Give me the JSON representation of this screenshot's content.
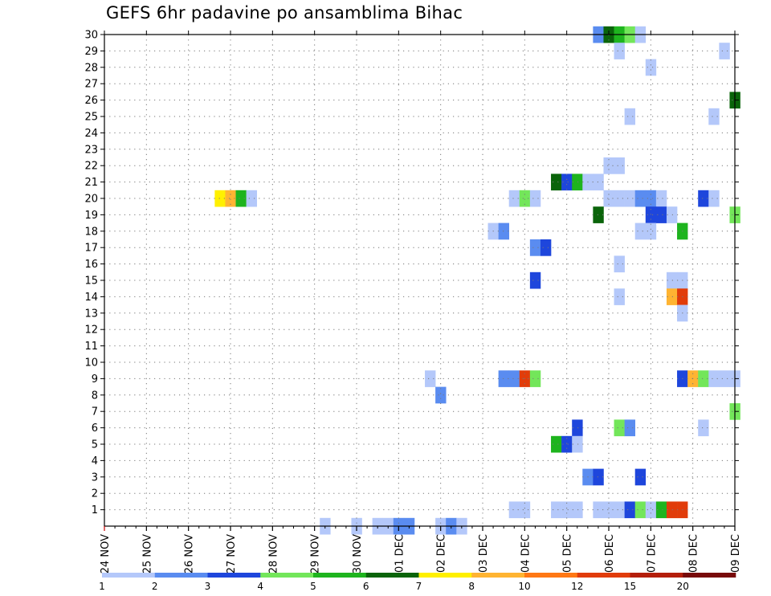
{
  "title": "GEFS 6hr padavine po ansamblima Bihac",
  "chart_data": {
    "type": "heatmap",
    "title": "GEFS 6hr padavine po ansamblima Bihac",
    "x_tick_labels": [
      "24 NOV",
      "25 NOV",
      "26 NOV",
      "27 NOV",
      "28 NOV",
      "29 NOV",
      "30 NOV",
      "01 DEC",
      "02 DEC",
      "03 DEC",
      "04 DEC",
      "05 DEC",
      "06 DEC",
      "07 DEC",
      "08 DEC",
      "09 DEC"
    ],
    "y_tick_labels": [
      "1",
      "2",
      "3",
      "4",
      "5",
      "6",
      "7",
      "8",
      "9",
      "10",
      "11",
      "12",
      "13",
      "14",
      "15",
      "16",
      "17",
      "18",
      "19",
      "20",
      "21",
      "22",
      "23",
      "24",
      "25",
      "26",
      "27",
      "28",
      "29",
      "30"
    ],
    "x_steps_per_day": 4,
    "colorbar": {
      "colors": [
        "#b4c8fa",
        "#5a8cf0",
        "#1e46dc",
        "#73e65a",
        "#1eb41e",
        "#0a640a",
        "#fff000",
        "#ffb432",
        "#ff7814",
        "#e13c0a",
        "#b41e0a",
        "#780a0a"
      ],
      "labels": [
        "1",
        "2",
        "3",
        "4",
        "5",
        "6",
        "7",
        "8",
        "10",
        "12",
        "15",
        "20"
      ]
    },
    "grid": true,
    "cells": [
      {
        "m": 30,
        "s": [
          [
            47,
            1
          ],
          [
            48,
            5
          ],
          [
            49,
            4
          ],
          [
            50,
            3
          ],
          [
            51,
            0
          ]
        ]
      },
      {
        "m": 29,
        "s": [
          [
            49,
            0
          ],
          [
            59,
            0
          ]
        ]
      },
      {
        "m": 28,
        "s": [
          [
            52,
            0
          ]
        ]
      },
      {
        "m": 26,
        "s": [
          [
            60,
            5
          ]
        ]
      },
      {
        "m": 25,
        "s": [
          [
            50,
            0
          ],
          [
            58,
            0
          ]
        ]
      },
      {
        "m": 22,
        "s": [
          [
            48,
            0
          ],
          [
            49,
            0
          ]
        ]
      },
      {
        "m": 21,
        "s": [
          [
            43,
            5
          ],
          [
            44,
            2
          ],
          [
            45,
            4
          ],
          [
            46,
            0
          ],
          [
            47,
            0
          ]
        ]
      },
      {
        "m": 20,
        "s": [
          [
            11,
            6
          ],
          [
            12,
            7
          ],
          [
            13,
            4
          ],
          [
            14,
            0
          ],
          [
            39,
            0
          ],
          [
            40,
            3
          ],
          [
            41,
            0
          ],
          [
            48,
            0
          ],
          [
            49,
            0
          ],
          [
            50,
            0
          ],
          [
            51,
            1
          ],
          [
            52,
            1
          ],
          [
            53,
            0
          ],
          [
            57,
            2
          ],
          [
            58,
            0
          ]
        ]
      },
      {
        "m": 19,
        "s": [
          [
            47,
            5
          ],
          [
            52,
            2
          ],
          [
            53,
            2
          ],
          [
            54,
            0
          ],
          [
            60,
            3
          ]
        ]
      },
      {
        "m": 18,
        "s": [
          [
            37,
            0
          ],
          [
            38,
            1
          ],
          [
            51,
            0
          ],
          [
            52,
            0
          ],
          [
            55,
            4
          ]
        ]
      },
      {
        "m": 17,
        "s": [
          [
            41,
            1
          ],
          [
            42,
            2
          ]
        ]
      },
      {
        "m": 16,
        "s": [
          [
            49,
            0
          ]
        ]
      },
      {
        "m": 15,
        "s": [
          [
            41,
            2
          ],
          [
            54,
            0
          ],
          [
            55,
            0
          ]
        ]
      },
      {
        "m": 14,
        "s": [
          [
            49,
            0
          ],
          [
            54,
            7
          ],
          [
            55,
            9
          ]
        ]
      },
      {
        "m": 13,
        "s": [
          [
            55,
            0
          ]
        ]
      },
      {
        "m": 9,
        "s": [
          [
            31,
            0
          ],
          [
            38,
            1
          ],
          [
            39,
            1
          ],
          [
            40,
            9
          ],
          [
            41,
            3
          ],
          [
            55,
            2
          ],
          [
            56,
            7
          ],
          [
            57,
            3
          ],
          [
            58,
            0
          ],
          [
            59,
            0
          ],
          [
            60,
            0
          ]
        ]
      },
      {
        "m": 8,
        "s": [
          [
            32,
            1
          ]
        ]
      },
      {
        "m": 7,
        "s": [
          [
            60,
            3
          ]
        ]
      },
      {
        "m": 6,
        "s": [
          [
            45,
            2
          ],
          [
            49,
            3
          ],
          [
            50,
            1
          ],
          [
            57,
            0
          ]
        ]
      },
      {
        "m": 5,
        "s": [
          [
            43,
            4
          ],
          [
            44,
            2
          ],
          [
            45,
            0
          ]
        ]
      },
      {
        "m": 3,
        "s": [
          [
            46,
            1
          ],
          [
            47,
            2
          ],
          [
            51,
            2
          ]
        ]
      },
      {
        "m": 1,
        "s": [
          [
            39,
            0
          ],
          [
            40,
            0
          ],
          [
            43,
            0
          ],
          [
            44,
            0
          ],
          [
            45,
            0
          ],
          [
            47,
            0
          ],
          [
            48,
            0
          ],
          [
            49,
            0
          ],
          [
            50,
            2
          ],
          [
            51,
            3
          ],
          [
            52,
            0
          ],
          [
            53,
            4
          ],
          [
            54,
            9
          ],
          [
            55,
            9
          ]
        ]
      },
      {
        "m": 0,
        "s": [
          [
            21,
            0
          ],
          [
            24,
            0
          ],
          [
            26,
            0
          ],
          [
            27,
            0
          ],
          [
            28,
            1
          ],
          [
            29,
            1
          ],
          [
            32,
            0
          ],
          [
            33,
            1
          ],
          [
            34,
            0
          ]
        ]
      }
    ]
  }
}
